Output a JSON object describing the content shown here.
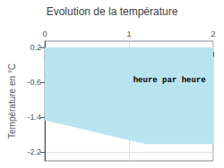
{
  "chart_data": {
    "type": "area",
    "title": "Evolution de la température",
    "ylabel": "Température en °C",
    "x": [
      0,
      1.2,
      2.0
    ],
    "values": [
      -1.45,
      -2.0,
      -2.0
    ],
    "upper": 0.2,
    "color": "#b8e4f0",
    "xlim": [
      0,
      2
    ],
    "xticks": [
      0,
      1,
      2
    ],
    "ylim": [
      -2.4,
      0.35
    ],
    "yticks": [
      0.2,
      -0.6,
      -1.4,
      -2.2
    ],
    "grid": true,
    "annotations": [
      {
        "text": "heure par heure",
        "x": 1.05,
        "y": -0.55
      }
    ]
  }
}
